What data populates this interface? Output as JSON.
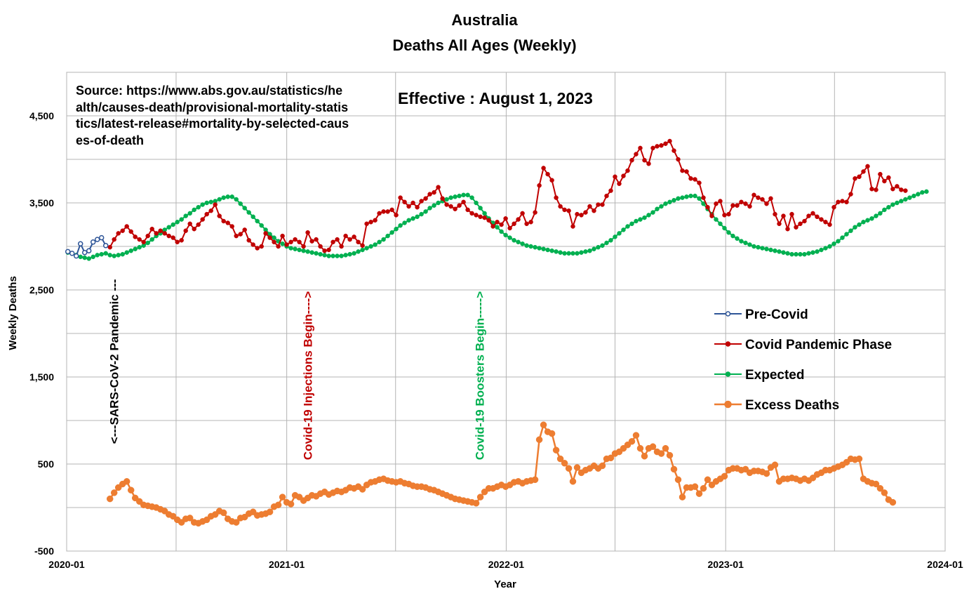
{
  "chart_data": {
    "type": "line",
    "title": "Australia",
    "subtitle": "Deaths All Ages (Weekly)",
    "annotation_effective": "Effective : August 1, 2023",
    "source_text": "Source: https://www.abs.gov.au/statistics/health/causes-death/provisional-mortality-statistics/latest-release#mortality-by-selected-causes-of-death",
    "xlabel": "Year",
    "ylabel": "Weekly Deaths",
    "x_ticks": [
      "2020-01",
      "2021-01",
      "2022-01",
      "2023-01",
      "2024-01"
    ],
    "y_ticks": [
      "4,500",
      "3,500",
      "2,500",
      "1,500",
      "500",
      "-500"
    ],
    "y_tick_values": [
      4500,
      3500,
      2500,
      1500,
      500,
      -500
    ],
    "ylim": [
      -500,
      5000
    ],
    "xlim": [
      "2020-01-01",
      "2024-01-01"
    ],
    "grid": true,
    "legend_position": "right",
    "vertical_annotations": [
      {
        "label": "<---SARS-CoV-2 Pandemic ---",
        "date": "2020-03-20",
        "color": "#000000"
      },
      {
        "label": "Covid-19 Injections Begin---->",
        "date": "2021-02-05",
        "color": "#c00000"
      },
      {
        "label": "Covid-19 Boosters Begin----->",
        "date": "2021-11-18",
        "color": "#00b050"
      }
    ],
    "series": [
      {
        "name": "Pre-Covid",
        "color": "#2e5597",
        "start": "2020-01-03",
        "values": [
          2940,
          2920,
          2890,
          3030,
          2930,
          2950,
          3050,
          3080,
          3100,
          3010
        ]
      },
      {
        "name": "Covid Pandemic Phase",
        "color": "#c00000",
        "start": "2020-03-13",
        "values": [
          2990,
          3080,
          3150,
          3180,
          3230,
          3170,
          3110,
          3080,
          3050,
          3120,
          3200,
          3150,
          3180,
          3150,
          3120,
          3100,
          3050,
          3070,
          3180,
          3260,
          3200,
          3250,
          3310,
          3370,
          3410,
          3480,
          3350,
          3290,
          3270,
          3230,
          3120,
          3140,
          3190,
          3070,
          3020,
          2980,
          3000,
          3150,
          3100,
          3050,
          3000,
          3120,
          3020,
          3050,
          3080,
          3050,
          3000,
          3160,
          3060,
          3080,
          3000,
          2950,
          2960,
          3050,
          3080,
          3000,
          3120,
          3080,
          3110,
          3050,
          3010,
          3260,
          3280,
          3300,
          3380,
          3400,
          3400,
          3420,
          3360,
          3560,
          3510,
          3460,
          3500,
          3450,
          3520,
          3550,
          3600,
          3620,
          3680,
          3550,
          3480,
          3460,
          3430,
          3470,
          3510,
          3420,
          3380,
          3360,
          3340,
          3330,
          3300,
          3230,
          3280,
          3250,
          3320,
          3210,
          3260,
          3310,
          3380,
          3260,
          3280,
          3390,
          3700,
          3900,
          3830,
          3760,
          3560,
          3460,
          3420,
          3410,
          3230,
          3370,
          3360,
          3390,
          3460,
          3410,
          3480,
          3480,
          3580,
          3640,
          3800,
          3720,
          3810,
          3870,
          3990,
          4060,
          4130,
          3990,
          3950,
          4130,
          4150,
          4160,
          4180,
          4210,
          4100,
          4000,
          3870,
          3860,
          3780,
          3770,
          3730,
          3560,
          3450,
          3350,
          3490,
          3520,
          3360,
          3370,
          3470,
          3470,
          3510,
          3490,
          3460,
          3590,
          3560,
          3540,
          3490,
          3550,
          3370,
          3260,
          3350,
          3200,
          3370,
          3220,
          3260,
          3290,
          3350,
          3380,
          3340,
          3310,
          3280,
          3250,
          3450,
          3510,
          3520,
          3510,
          3600,
          3780,
          3800,
          3860,
          3920,
          3660,
          3650,
          3830,
          3750,
          3790,
          3660,
          3690,
          3650,
          3640
        ]
      },
      {
        "name": "Expected",
        "color": "#00b050",
        "start": "2020-01-03",
        "values": [
          2930,
          2920,
          2900,
          2880,
          2870,
          2860,
          2880,
          2900,
          2910,
          2920,
          2900,
          2890,
          2900,
          2910,
          2930,
          2950,
          2970,
          2990,
          3010,
          3040,
          3080,
          3120,
          3150,
          3190,
          3220,
          3250,
          3280,
          3310,
          3350,
          3380,
          3420,
          3450,
          3480,
          3500,
          3510,
          3520,
          3540,
          3560,
          3570,
          3570,
          3540,
          3490,
          3440,
          3390,
          3340,
          3290,
          3240,
          3190,
          3140,
          3100,
          3060,
          3030,
          3000,
          2980,
          2970,
          2960,
          2950,
          2940,
          2930,
          2920,
          2910,
          2900,
          2890,
          2890,
          2890,
          2890,
          2900,
          2910,
          2920,
          2940,
          2960,
          2980,
          3000,
          3020,
          3050,
          3080,
          3120,
          3160,
          3200,
          3240,
          3270,
          3300,
          3320,
          3340,
          3370,
          3400,
          3440,
          3470,
          3500,
          3520,
          3540,
          3560,
          3570,
          3580,
          3590,
          3590,
          3560,
          3500,
          3440,
          3380,
          3320,
          3270,
          3220,
          3170,
          3130,
          3100,
          3070,
          3050,
          3030,
          3010,
          3000,
          2990,
          2980,
          2970,
          2960,
          2950,
          2940,
          2930,
          2920,
          2920,
          2920,
          2920,
          2930,
          2940,
          2950,
          2970,
          2990,
          3010,
          3040,
          3070,
          3110,
          3150,
          3190,
          3230,
          3260,
          3290,
          3310,
          3330,
          3360,
          3390,
          3430,
          3460,
          3490,
          3510,
          3530,
          3550,
          3560,
          3570,
          3580,
          3580,
          3550,
          3490,
          3430,
          3370,
          3310,
          3260,
          3210,
          3160,
          3120,
          3090,
          3060,
          3040,
          3020,
          3000,
          2990,
          2980,
          2970,
          2960,
          2950,
          2940,
          2930,
          2920,
          2910,
          2910,
          2910,
          2910,
          2920,
          2930,
          2940,
          2960,
          2980,
          3000,
          3030,
          3060,
          3100,
          3140,
          3180,
          3220,
          3250,
          3280,
          3300,
          3320,
          3350,
          3380,
          3420,
          3450,
          3480,
          3500,
          3520,
          3540,
          3560,
          3580,
          3600,
          3620,
          3630
        ]
      },
      {
        "name": "Excess Deaths",
        "color": "#ed7d31",
        "start": "2020-03-13",
        "values": [
          100,
          170,
          230,
          270,
          300,
          200,
          110,
          70,
          30,
          20,
          10,
          0,
          -20,
          -40,
          -80,
          -100,
          -140,
          -170,
          -130,
          -120,
          -170,
          -180,
          -160,
          -140,
          -100,
          -80,
          -40,
          -60,
          -130,
          -160,
          -170,
          -120,
          -110,
          -70,
          -50,
          -90,
          -80,
          -70,
          -50,
          10,
          30,
          120,
          60,
          40,
          140,
          120,
          80,
          110,
          140,
          130,
          160,
          180,
          150,
          170,
          190,
          180,
          200,
          230,
          220,
          240,
          210,
          260,
          290,
          300,
          320,
          330,
          310,
          300,
          290,
          300,
          280,
          270,
          250,
          240,
          240,
          230,
          210,
          200,
          180,
          160,
          140,
          120,
          100,
          90,
          80,
          70,
          60,
          50,
          120,
          180,
          220,
          220,
          240,
          260,
          240,
          260,
          290,
          300,
          280,
          300,
          310,
          320,
          780,
          950,
          870,
          850,
          660,
          560,
          510,
          450,
          300,
          460,
          400,
          430,
          450,
          480,
          450,
          480,
          560,
          570,
          620,
          640,
          680,
          720,
          760,
          830,
          680,
          590,
          680,
          700,
          640,
          620,
          680,
          600,
          440,
          320,
          120,
          230,
          230,
          240,
          160,
          220,
          320,
          260,
          300,
          330,
          360,
          430,
          450,
          450,
          430,
          440,
          400,
          420,
          420,
          410,
          390,
          460,
          490,
          300,
          330,
          330,
          340,
          330,
          310,
          330,
          310,
          340,
          380,
          400,
          430,
          430,
          450,
          470,
          490,
          520,
          560,
          550,
          560,
          330,
          300,
          280,
          270,
          220,
          170,
          90,
          60
        ]
      }
    ]
  }
}
